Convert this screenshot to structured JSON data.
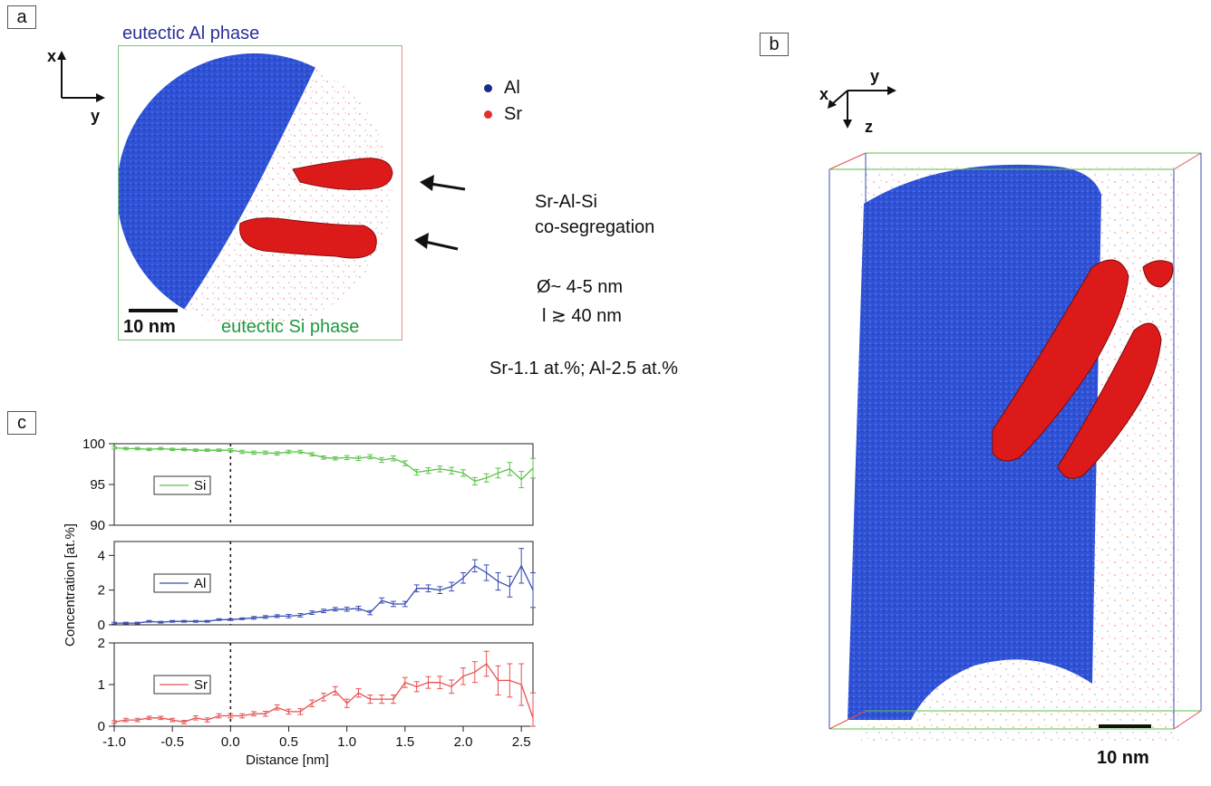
{
  "panels": {
    "a": "a",
    "b": "b",
    "c": "c"
  },
  "panel_a": {
    "top_label": "eutectic Al phase",
    "bottom_label": "eutectic Si phase",
    "scalebar": "10 nm",
    "axis_x": "x",
    "axis_y": "y",
    "legend": [
      {
        "label": "Al",
        "color": "#1a2a8a"
      },
      {
        "label": "Sr",
        "color": "#e03030"
      }
    ]
  },
  "annotations": {
    "line1": "Sr-Al-Si",
    "line2": "co-segregation",
    "diameter": "Ø~ 4-5 nm",
    "length": "l ≳ 40 nm",
    "composition": "Sr-1.1 at.%;  Al-2.5 at.%"
  },
  "panel_b": {
    "axis_x": "x",
    "axis_y": "y",
    "axis_z": "z",
    "scalebar": "10 nm"
  },
  "colors": {
    "al_phase": "#2a49c8",
    "sr_phase": "#e02020",
    "si_line": "#5bc24a",
    "al_line": "#3a4fb0",
    "sr_line": "#e85050"
  },
  "chart_data": {
    "type": "line",
    "xlabel": "Distance [nm]",
    "ylabel": "Concentration [at.%]",
    "xlim": [
      -1.0,
      2.6
    ],
    "xticks": [
      "-1.0",
      "-0.5",
      "0.0",
      "0.5",
      "1.0",
      "1.5",
      "2.0",
      "2.5"
    ],
    "x": [
      -1.0,
      -0.9,
      -0.8,
      -0.7,
      -0.6,
      -0.5,
      -0.4,
      -0.3,
      -0.2,
      -0.1,
      0.0,
      0.1,
      0.2,
      0.3,
      0.4,
      0.5,
      0.6,
      0.7,
      0.8,
      0.9,
      1.0,
      1.1,
      1.2,
      1.3,
      1.4,
      1.5,
      1.6,
      1.7,
      1.8,
      1.9,
      2.0,
      2.1,
      2.2,
      2.3,
      2.4,
      2.5,
      2.6
    ],
    "series": [
      {
        "name": "Si",
        "ylim": [
          90,
          100
        ],
        "yticks": [
          "90",
          "95",
          "100"
        ],
        "values": [
          99.5,
          99.4,
          99.4,
          99.3,
          99.4,
          99.3,
          99.3,
          99.2,
          99.2,
          99.2,
          99.2,
          99.0,
          98.9,
          98.9,
          98.8,
          99.0,
          99.0,
          98.7,
          98.3,
          98.2,
          98.3,
          98.2,
          98.4,
          98.0,
          98.2,
          97.6,
          96.5,
          96.7,
          96.9,
          96.7,
          96.4,
          95.4,
          95.8,
          96.4,
          96.9,
          95.6,
          97.0
        ],
        "errors": [
          0.15,
          0.15,
          0.15,
          0.15,
          0.15,
          0.15,
          0.15,
          0.15,
          0.15,
          0.15,
          0.2,
          0.2,
          0.2,
          0.2,
          0.2,
          0.2,
          0.2,
          0.2,
          0.2,
          0.2,
          0.25,
          0.25,
          0.25,
          0.3,
          0.3,
          0.3,
          0.35,
          0.35,
          0.35,
          0.4,
          0.4,
          0.45,
          0.5,
          0.6,
          0.8,
          1.0,
          1.2
        ]
      },
      {
        "name": "Al",
        "ylim": [
          0,
          4.8
        ],
        "yticks": [
          "0",
          "2",
          "4"
        ],
        "values": [
          0.1,
          0.1,
          0.1,
          0.2,
          0.15,
          0.2,
          0.2,
          0.2,
          0.2,
          0.3,
          0.3,
          0.35,
          0.4,
          0.45,
          0.5,
          0.5,
          0.55,
          0.7,
          0.8,
          0.9,
          0.9,
          0.95,
          0.7,
          1.4,
          1.2,
          1.2,
          2.1,
          2.1,
          2.0,
          2.2,
          2.7,
          3.4,
          3.0,
          2.5,
          2.2,
          3.4,
          2.0
        ],
        "errors": [
          0.05,
          0.05,
          0.05,
          0.05,
          0.05,
          0.05,
          0.05,
          0.05,
          0.05,
          0.05,
          0.05,
          0.05,
          0.08,
          0.08,
          0.08,
          0.1,
          0.1,
          0.1,
          0.1,
          0.1,
          0.12,
          0.12,
          0.12,
          0.15,
          0.15,
          0.15,
          0.2,
          0.2,
          0.2,
          0.25,
          0.3,
          0.35,
          0.45,
          0.5,
          0.6,
          1.0,
          1.0
        ]
      },
      {
        "name": "Sr",
        "ylim": [
          0,
          2
        ],
        "yticks": [
          "0",
          "1",
          "2"
        ],
        "values": [
          0.1,
          0.15,
          0.15,
          0.2,
          0.2,
          0.15,
          0.1,
          0.2,
          0.15,
          0.25,
          0.25,
          0.25,
          0.3,
          0.3,
          0.45,
          0.35,
          0.35,
          0.55,
          0.7,
          0.85,
          0.55,
          0.8,
          0.65,
          0.65,
          0.65,
          1.05,
          0.95,
          1.05,
          1.05,
          0.95,
          1.2,
          1.3,
          1.5,
          1.1,
          1.1,
          1.0,
          0.2
        ],
        "errors": [
          0.03,
          0.04,
          0.04,
          0.04,
          0.04,
          0.04,
          0.04,
          0.05,
          0.05,
          0.05,
          0.05,
          0.05,
          0.05,
          0.06,
          0.06,
          0.06,
          0.07,
          0.08,
          0.09,
          0.1,
          0.1,
          0.1,
          0.1,
          0.1,
          0.1,
          0.12,
          0.12,
          0.14,
          0.15,
          0.16,
          0.2,
          0.25,
          0.3,
          0.35,
          0.4,
          0.5,
          0.6
        ]
      }
    ]
  }
}
